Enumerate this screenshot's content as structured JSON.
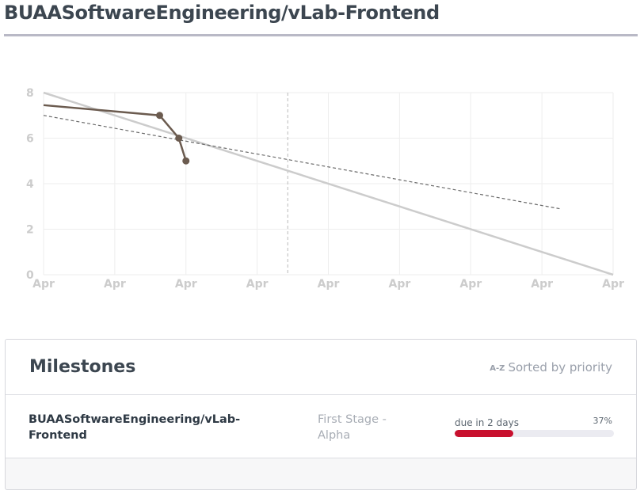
{
  "header": {
    "title": "BUAASoftwareEngineering/vLab-Frontend"
  },
  "chart_data": {
    "type": "line",
    "y_ticks": [
      0,
      2,
      4,
      6,
      8
    ],
    "x_ticks": [
      "Apr",
      "Apr",
      "Apr",
      "Apr",
      "Apr",
      "Apr",
      "Apr",
      "Apr",
      "Apr"
    ],
    "ylim": [
      0,
      8
    ],
    "xlim": [
      0,
      8
    ],
    "grid": true,
    "series": [
      {
        "values": [
          [
            0,
            7.45
          ],
          [
            1.63,
            7.0
          ],
          [
            1.9,
            6.0
          ],
          [
            2.0,
            5.0
          ]
        ],
        "color": "#6b5b4f"
      },
      {
        "values": [
          [
            0,
            8
          ],
          [
            8,
            0
          ]
        ],
        "color": "#cccccc"
      },
      {
        "values": [
          [
            0,
            7.0
          ],
          [
            7.25,
            2.9
          ]
        ],
        "color": "#6b6b6b"
      }
    ],
    "today_marker_x": 3.43
  },
  "milestones": {
    "title": "Milestones",
    "sort_icon": "A-Z",
    "sort_label": "Sorted by priority",
    "items": [
      {
        "repo": "BUAASoftwareEngineering/vLab-Frontend",
        "name": "First Stage - Alpha",
        "due": "due in 2 days",
        "percent_label": "37%",
        "progress": 0.37,
        "bar_color": "#c8102e"
      }
    ]
  }
}
